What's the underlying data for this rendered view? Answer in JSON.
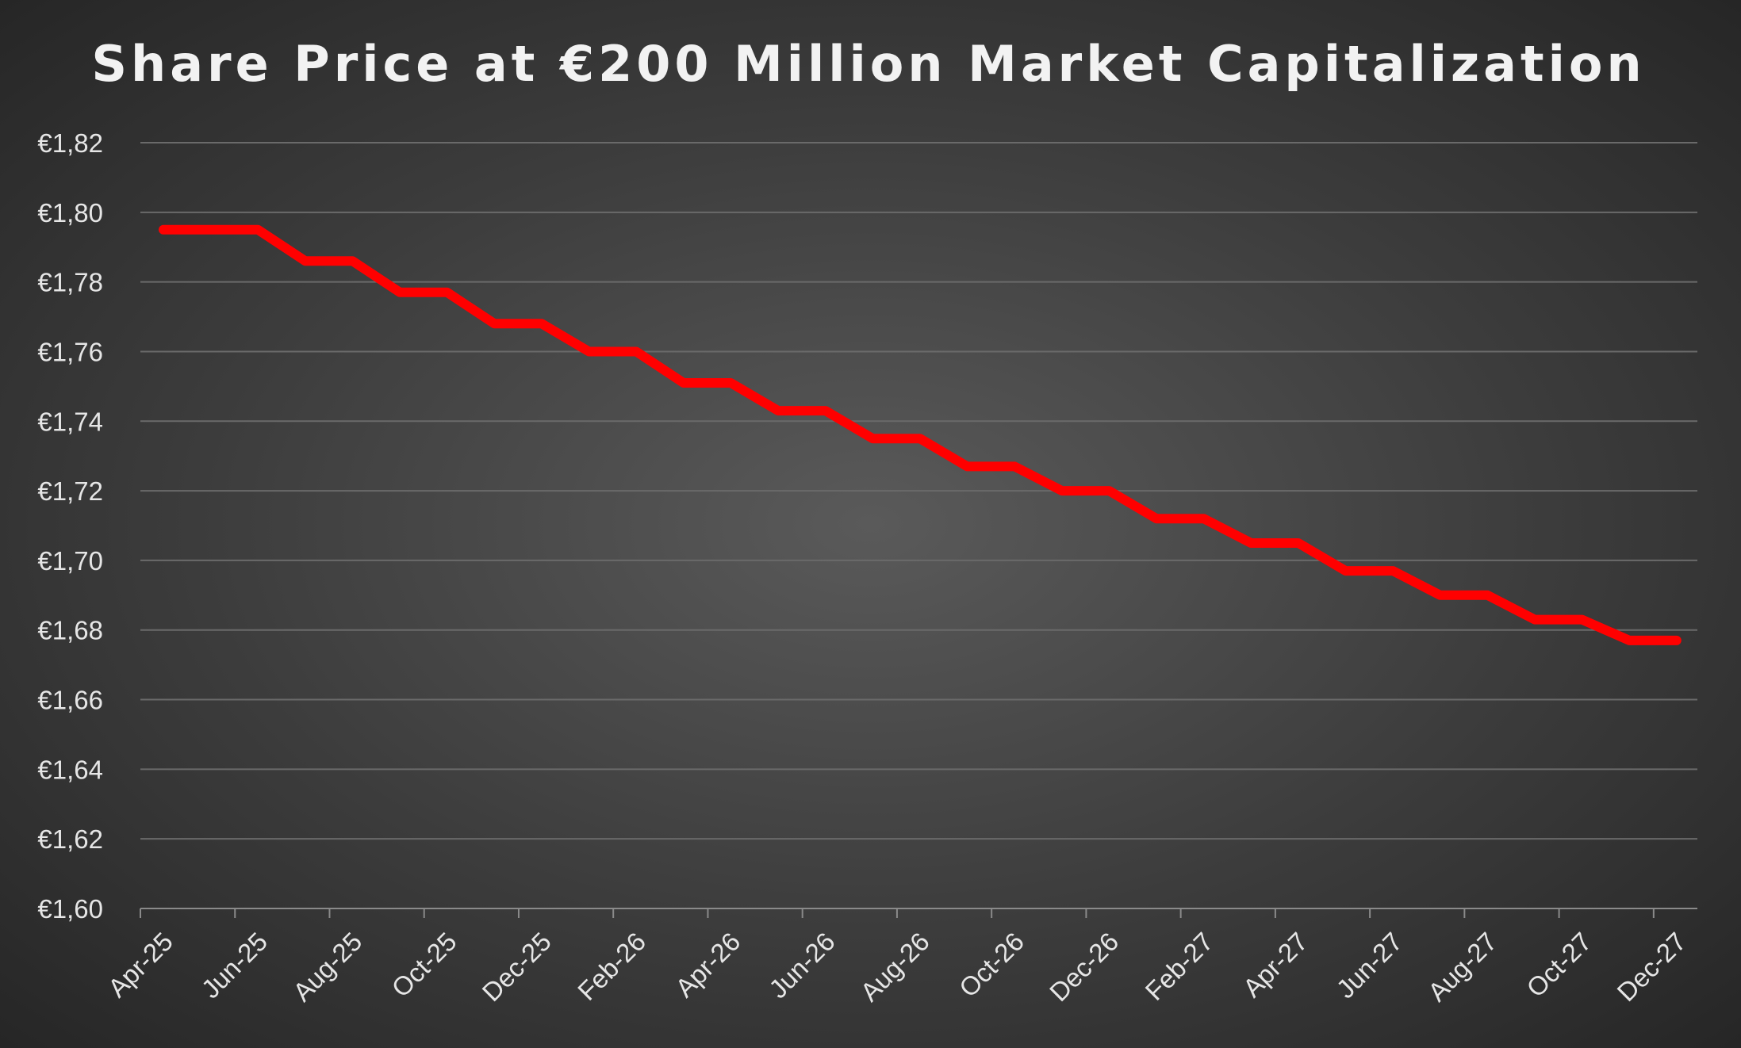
{
  "colors": {
    "line": "#ff0000",
    "text": "#f2f2f2",
    "grid": "#6a6a6a"
  },
  "chart_data": {
    "type": "line",
    "title": "Share Price at €200 Million Market Capitalization",
    "xlabel": "",
    "ylabel": "",
    "ylim": [
      1.6,
      1.82
    ],
    "yticks": [
      1.6,
      1.62,
      1.64,
      1.66,
      1.68,
      1.7,
      1.72,
      1.74,
      1.76,
      1.78,
      1.8,
      1.82
    ],
    "ytick_labels": [
      "€1,60",
      "€1,62",
      "€1,64",
      "€1,66",
      "€1,68",
      "€1,70",
      "€1,72",
      "€1,74",
      "€1,76",
      "€1,78",
      "€1,80",
      "€1,82"
    ],
    "xtick_labels": [
      "Apr-25",
      "Jun-25",
      "Aug-25",
      "Oct-25",
      "Dec-25",
      "Feb-26",
      "Apr-26",
      "Jun-26",
      "Aug-26",
      "Oct-26",
      "Dec-26",
      "Feb-27",
      "Apr-27",
      "Jun-27",
      "Aug-27",
      "Oct-27",
      "Dec-27"
    ],
    "x": [
      "Apr-25",
      "May-25",
      "Jun-25",
      "Jul-25",
      "Aug-25",
      "Sep-25",
      "Oct-25",
      "Nov-25",
      "Dec-25",
      "Jan-26",
      "Feb-26",
      "Mar-26",
      "Apr-26",
      "May-26",
      "Jun-26",
      "Jul-26",
      "Aug-26",
      "Sep-26",
      "Oct-26",
      "Nov-26",
      "Dec-26",
      "Jan-27",
      "Feb-27",
      "Mar-27",
      "Apr-27",
      "May-27",
      "Jun-27",
      "Jul-27",
      "Aug-27",
      "Sep-27",
      "Oct-27",
      "Nov-27",
      "Dec-27"
    ],
    "series": [
      {
        "values": [
          1.795,
          1.795,
          1.795,
          1.786,
          1.786,
          1.777,
          1.777,
          1.768,
          1.768,
          1.76,
          1.76,
          1.751,
          1.751,
          1.743,
          1.743,
          1.735,
          1.735,
          1.727,
          1.727,
          1.72,
          1.72,
          1.712,
          1.712,
          1.705,
          1.705,
          1.697,
          1.697,
          1.69,
          1.69,
          1.683,
          1.683,
          1.677,
          1.677
        ]
      }
    ],
    "grid": true,
    "legend": "none"
  }
}
